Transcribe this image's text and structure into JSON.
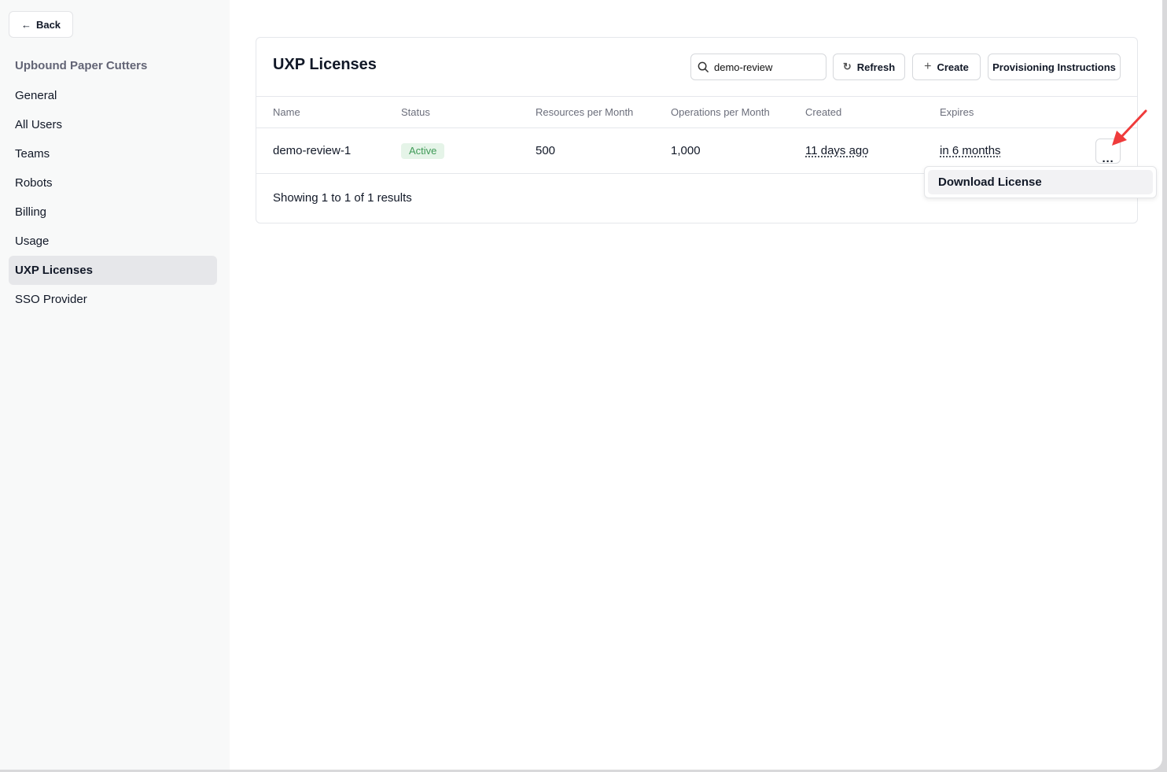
{
  "sidebar": {
    "back_label": "Back",
    "org_name": "Upbound Paper Cutters",
    "items": [
      {
        "label": "General"
      },
      {
        "label": "All Users"
      },
      {
        "label": "Teams"
      },
      {
        "label": "Robots"
      },
      {
        "label": "Billing"
      },
      {
        "label": "Usage"
      },
      {
        "label": "UXP Licenses",
        "active": true
      },
      {
        "label": "SSO Provider"
      }
    ]
  },
  "main": {
    "title": "UXP Licenses",
    "search_value": "demo-review",
    "refresh_label": "Refresh",
    "create_label": "Create",
    "provisioning_label": "Provisioning Instructions",
    "columns": [
      "Name",
      "Status",
      "Resources per Month",
      "Operations per Month",
      "Created",
      "Expires"
    ],
    "rows": [
      {
        "name": "demo-review-1",
        "status": "Active",
        "resources": "500",
        "operations": "1,000",
        "created": "11 days ago",
        "expires": "in 6 months"
      }
    ],
    "footer": "Showing 1 to 1 of 1 results",
    "row_menu": {
      "items": [
        {
          "label": "Download License"
        }
      ]
    }
  },
  "colors": {
    "accent_arrow": "#ef3b3b",
    "status_active_bg": "#e5f4e8",
    "status_active_text": "#3f9a57"
  }
}
